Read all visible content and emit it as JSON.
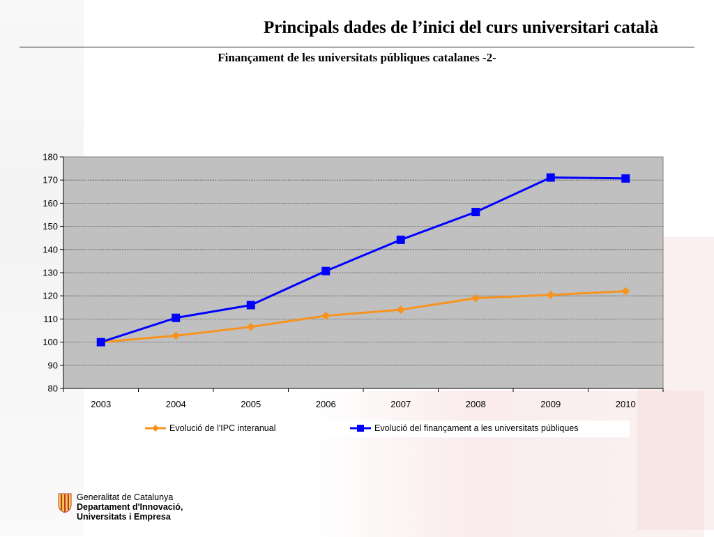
{
  "slide": {
    "title": "Principals dades de l’inici del curs universitari català",
    "subtitle": "Finançament de les universitats públiques catalanes -2-"
  },
  "footer": {
    "org_line1": "Generalitat de Catalunya",
    "org_line2": "Departament d'Innovació,",
    "org_line3": "Universitats i Empresa"
  },
  "colors": {
    "ipc": "#F7931E",
    "financament": "#0000FF",
    "plot_bg": "#C0C0C0",
    "grid": "#808080"
  },
  "chart_data": {
    "type": "line",
    "categories": [
      "2003",
      "2004",
      "2005",
      "2006",
      "2007",
      "2008",
      "2009",
      "2010"
    ],
    "ylim": [
      80,
      180
    ],
    "yticks": [
      80,
      90,
      100,
      110,
      120,
      130,
      140,
      150,
      160,
      170,
      180
    ],
    "grid": true,
    "legend_position": "bottom",
    "series": [
      {
        "name": "Evolució de l'IPC interanual",
        "marker": "diamond",
        "color": "#F7931E",
        "values": [
          100,
          102.8,
          106.6,
          111.4,
          114,
          119,
          120.4,
          122
        ]
      },
      {
        "name": "Evolució del finançament a les universitats públiques",
        "marker": "square",
        "color": "#0000FF",
        "values": [
          100,
          110.5,
          116,
          130.7,
          144.2,
          156.2,
          171.1,
          170.7
        ]
      }
    ]
  }
}
